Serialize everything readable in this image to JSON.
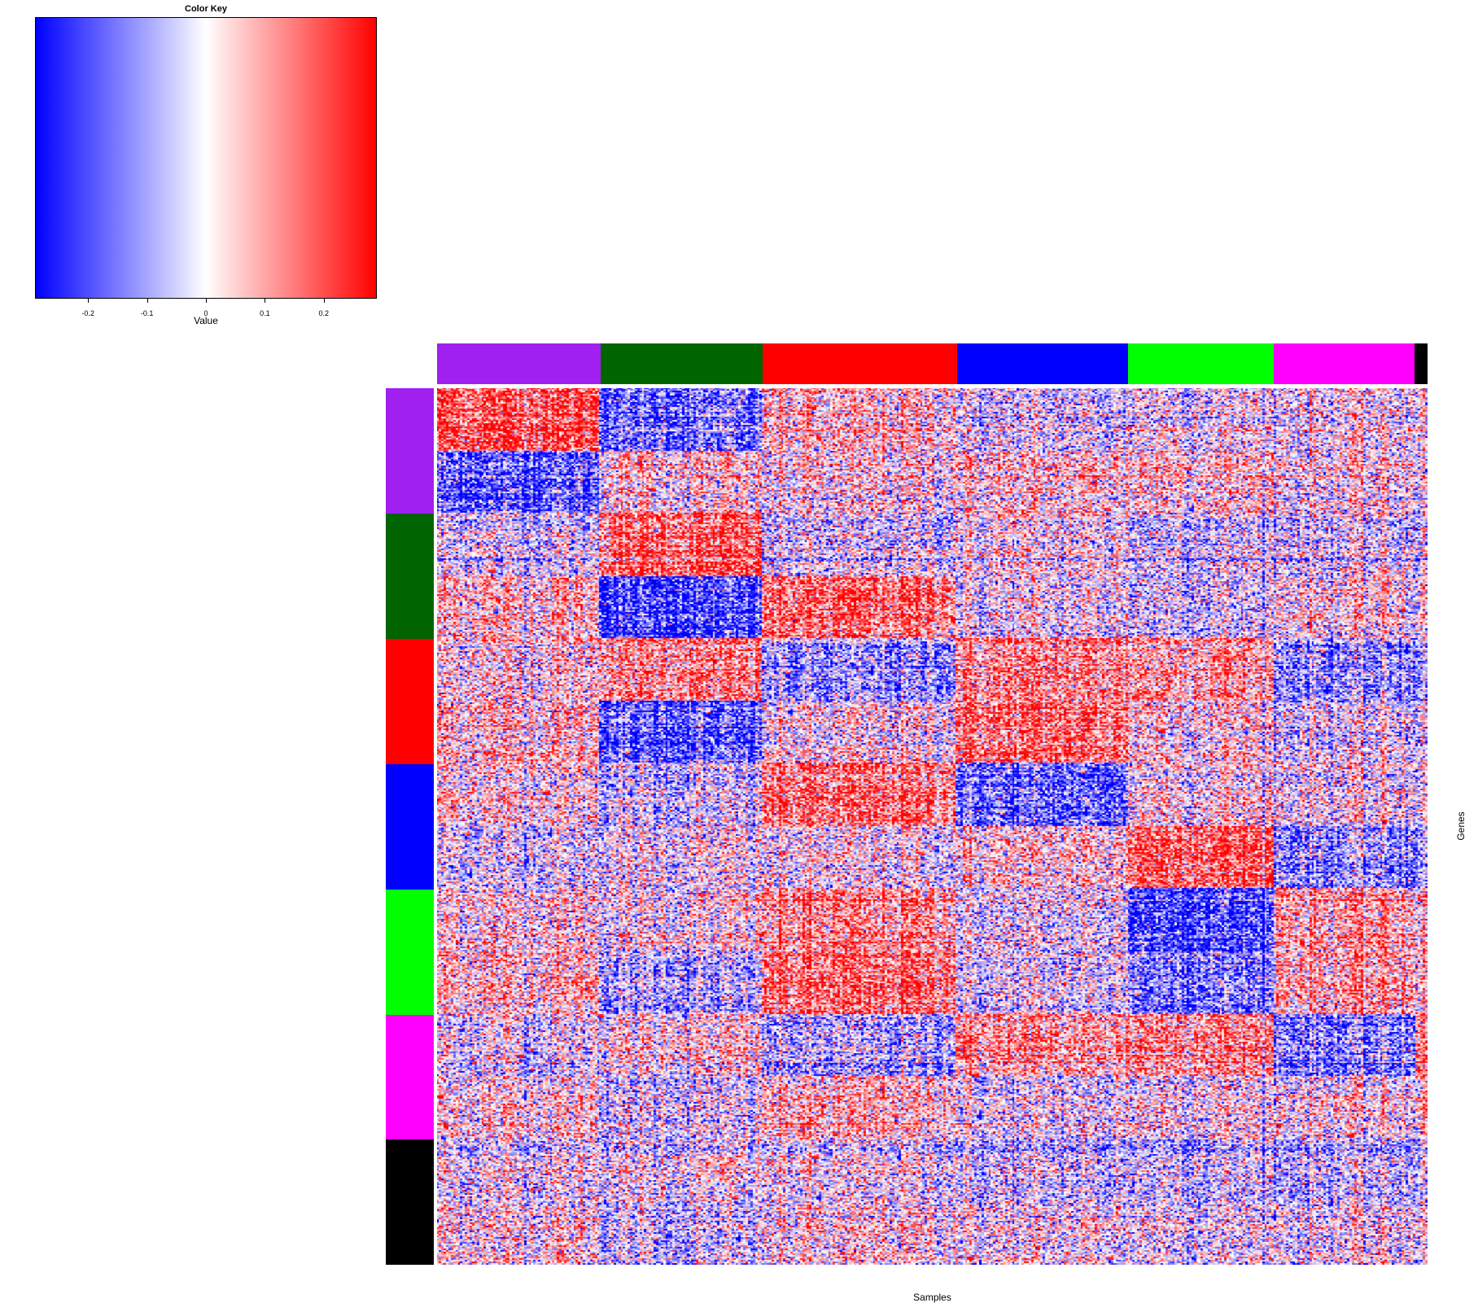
{
  "color_key": {
    "title": "Color Key",
    "xlabel": "Value",
    "range": [
      -0.29,
      0.29
    ],
    "ticks": [
      {
        "value": -0.2,
        "label": "-0.2"
      },
      {
        "value": -0.1,
        "label": "-0.1"
      },
      {
        "value": 0,
        "label": "0"
      },
      {
        "value": 0.1,
        "label": "0.1"
      },
      {
        "value": 0.2,
        "label": "0.2"
      }
    ],
    "low_color": "#0000ff",
    "mid_color": "#ffffff",
    "high_color": "#ff0000"
  },
  "clusters": [
    {
      "name": "purple",
      "color": "#a020f0"
    },
    {
      "name": "darkgreen",
      "color": "#006400"
    },
    {
      "name": "red",
      "color": "#ff0000"
    },
    {
      "name": "blue",
      "color": "#0000ff"
    },
    {
      "name": "green",
      "color": "#00ff00"
    },
    {
      "name": "magenta",
      "color": "#ff00ff"
    },
    {
      "name": "black",
      "color": "#000000"
    }
  ],
  "chart_data": {
    "type": "heatmap",
    "title": "",
    "xlabel": "Samples",
    "ylabel": "Genes",
    "value_range": [
      -0.29,
      0.29
    ],
    "column_groups": [
      {
        "cluster": "purple",
        "fraction": 0.165
      },
      {
        "cluster": "darkgreen",
        "fraction": 0.164
      },
      {
        "cluster": "red",
        "fraction": 0.196
      },
      {
        "cluster": "blue",
        "fraction": 0.173
      },
      {
        "cluster": "green",
        "fraction": 0.147
      },
      {
        "cluster": "magenta",
        "fraction": 0.142
      },
      {
        "cluster": "black",
        "fraction": 0.013
      }
    ],
    "row_groups": [
      {
        "cluster": "purple",
        "fraction": 0.1429
      },
      {
        "cluster": "darkgreen",
        "fraction": 0.1429
      },
      {
        "cluster": "red",
        "fraction": 0.1429
      },
      {
        "cluster": "blue",
        "fraction": 0.1429
      },
      {
        "cluster": "green",
        "fraction": 0.1429
      },
      {
        "cluster": "magenta",
        "fraction": 0.1429
      },
      {
        "cluster": "black",
        "fraction": 0.1426
      }
    ],
    "block_means": [
      [
        0.2,
        -0.18,
        0.05,
        -0.05,
        -0.02,
        0.0,
        0.0,
        0.0
      ],
      [
        -0.18,
        0.05,
        0.03,
        0.05,
        0.07,
        0.03,
        0.0,
        0.0
      ],
      [
        -0.04,
        0.18,
        -0.05,
        0.0,
        -0.04,
        -0.04,
        -0.03,
        -0.03
      ],
      [
        0.08,
        -0.22,
        0.17,
        0.0,
        -0.03,
        0.03,
        0.03,
        0.03
      ],
      [
        0.03,
        0.12,
        -0.12,
        0.12,
        0.1,
        -0.12,
        -0.1,
        -0.1
      ],
      [
        0.05,
        -0.2,
        0.0,
        0.15,
        0.03,
        -0.03,
        -0.03,
        -0.03
      ],
      [
        0.03,
        -0.05,
        0.15,
        -0.18,
        0.03,
        0.0,
        0.0,
        0.0
      ],
      [
        -0.02,
        0.0,
        0.0,
        0.05,
        0.2,
        -0.12,
        -0.1,
        -0.1
      ],
      [
        0.03,
        0.0,
        0.12,
        -0.03,
        -0.22,
        0.1,
        0.05,
        0.05
      ],
      [
        0.05,
        -0.1,
        0.15,
        -0.05,
        -0.15,
        0.08,
        0.05,
        0.05
      ],
      [
        -0.03,
        0.03,
        -0.1,
        0.1,
        0.13,
        -0.15,
        0.12,
        0.12
      ],
      [
        0.03,
        -0.05,
        0.05,
        -0.03,
        0.0,
        0.0,
        0.05,
        0.05
      ],
      [
        0.0,
        0.0,
        0.0,
        -0.05,
        -0.05,
        -0.05,
        -0.05,
        -0.05
      ],
      [
        0.03,
        -0.05,
        0.03,
        0.0,
        0.0,
        0.0,
        0.0,
        0.0
      ]
    ],
    "block_column_fractions": [
      0.165,
      0.164,
      0.196,
      0.173,
      0.147,
      0.142,
      0.012,
      0.001
    ],
    "block_row_fractions": [
      0.0714,
      0.0714,
      0.0714,
      0.0714,
      0.0714,
      0.0714,
      0.0714,
      0.0714,
      0.0714,
      0.0714,
      0.0714,
      0.0714,
      0.0714,
      0.0718
    ]
  }
}
